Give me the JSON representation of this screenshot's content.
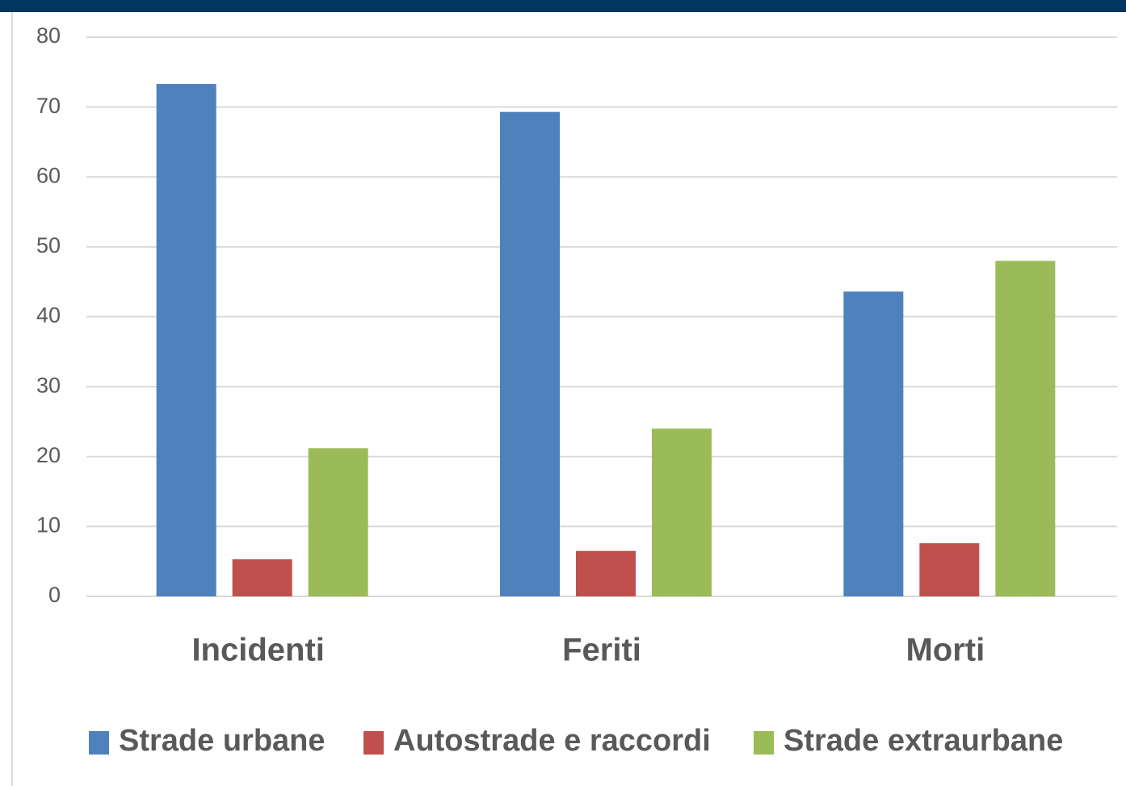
{
  "chart_data": {
    "type": "bar",
    "categories": [
      "Incidenti",
      "Feriti",
      "Morti"
    ],
    "series": [
      {
        "name": "Strade urbane",
        "color": "#4f81bd",
        "values": [
          73.3,
          69.3,
          43.6
        ]
      },
      {
        "name": "Autostrade e raccordi",
        "color": "#c0504d",
        "values": [
          5.3,
          6.5,
          7.6
        ]
      },
      {
        "name": "Strade extraurbane",
        "color": "#9bbb59",
        "values": [
          21.2,
          24.0,
          48.0
        ]
      }
    ],
    "ylim": [
      0,
      80
    ],
    "yticks": [
      0,
      10,
      20,
      30,
      40,
      50,
      60,
      70,
      80
    ],
    "grid": true,
    "legend": "bottom"
  }
}
